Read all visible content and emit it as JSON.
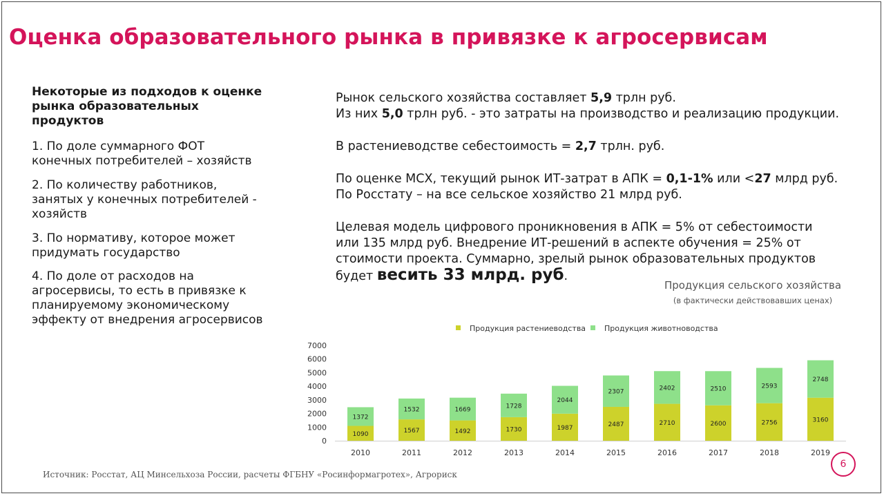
{
  "slide": {
    "title": "Оценка образовательного рынка в привязке к агросервисам",
    "page_number": "6",
    "source": "Источник: Росстат, АЦ Минсельхоза России, расчеты ФГБНУ «Росинформагротех», Агрориск"
  },
  "approaches": {
    "heading": "Некоторые из подходов к оценке рынка образовательных продуктов",
    "items": [
      "1. По доле суммарного ФОТ конечных потребителей – хозяйств",
      "2. По количеству работников, занятых у конечных потребителей - хозяйств",
      "3. По нормативу, которое может придумать государство",
      "4. По доле от расходов на агросервисы, то есть в привязке к планируемому экономическому эффекту от внедрения агросервисов"
    ]
  },
  "facts": {
    "p1_l1_a": "Рынок сельского хозяйства составляет ",
    "p1_l1_b": "5,9",
    "p1_l1_c": " трлн руб.",
    "p1_l2_a": "Из них ",
    "p1_l2_b": "5,0",
    "p1_l2_c": " трлн руб. - это затраты на производство и реализацию продукции.",
    "p2_a": "В растениеводстве себестоимость = ",
    "p2_b": "2,7",
    "p2_c": " трлн. руб.",
    "p3_l1_a": "По оценке МСХ, текущий рынок ИТ-затрат в АПК = ",
    "p3_l1_b": "0,1-1%",
    "p3_l1_c": " или <",
    "p3_l1_d": "27",
    "p3_l1_e": " млрд руб.",
    "p3_l2": "По Росстату – на все сельское хозяйство 21 млрд руб.",
    "p4_l1": "Целевая модель цифрового проникновения в АПК = 5% от себестоимости",
    "p4_l2": "или 135 млрд руб. Внедрение ИТ-решений в аспекте обучения = 25% от",
    "p4_l3": "стоимости проекта. Суммарно, зрелый рынок образовательных продуктов",
    "p4_l4_a": "будет ",
    "p4_l4_b": "весить  33 млрд. руб",
    "p4_l4_c": "."
  },
  "chart_data": {
    "type": "bar",
    "stacked": true,
    "title": "Продукция сельского хозяйства",
    "subtitle": "(в фактически действовавших ценах)",
    "categories": [
      "2010",
      "2011",
      "2012",
      "2013",
      "2014",
      "2015",
      "2016",
      "2017",
      "2018",
      "2019"
    ],
    "series": [
      {
        "name": "Продукция растениеводства",
        "color": "#cdd22b",
        "values": [
          1090,
          1567,
          1492,
          1730,
          1987,
          2487,
          2710,
          2600,
          2756,
          3160
        ]
      },
      {
        "name": "Продукция животноводства",
        "color": "#8ee08a",
        "values": [
          1372,
          1532,
          1669,
          1728,
          2044,
          2307,
          2402,
          2510,
          2593,
          2748
        ]
      }
    ],
    "ylim": [
      0,
      7000
    ],
    "yticks": [
      0,
      1000,
      2000,
      3000,
      4000,
      5000,
      6000,
      7000
    ],
    "legend_position": "top",
    "grid": false
  }
}
